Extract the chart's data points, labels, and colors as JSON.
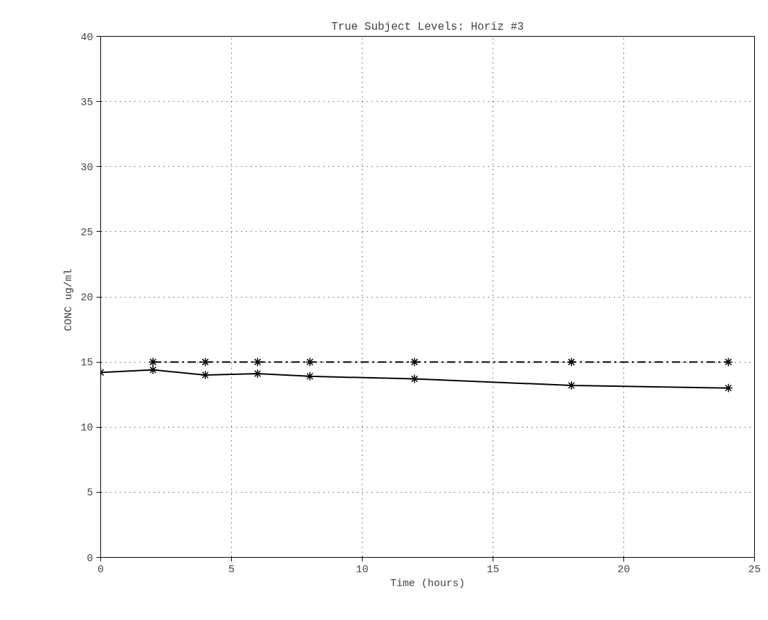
{
  "chart_data": {
    "type": "line",
    "title": "True Subject Levels: Horiz #3",
    "xlabel": "Time (hours)",
    "ylabel": "CONC  ug/ml",
    "xlim": [
      0,
      25
    ],
    "ylim": [
      0,
      40
    ],
    "xticks": [
      0,
      5,
      10,
      15,
      20,
      25
    ],
    "yticks": [
      0,
      5,
      10,
      15,
      20,
      25,
      30,
      35,
      40
    ],
    "grid": true,
    "marker": "cross",
    "series": [
      {
        "color": "#000000",
        "line_style": "solid",
        "x": [
          0,
          2,
          4,
          6,
          8,
          12,
          18,
          24
        ],
        "values": [
          14.2,
          14.4,
          14.0,
          14.1,
          13.9,
          13.7,
          13.2,
          13.0
        ]
      },
      {
        "color": "#000000",
        "line_style": "dashed",
        "x": [
          2,
          4,
          6,
          8,
          12,
          18,
          24
        ],
        "values": [
          15,
          15,
          15,
          15,
          15,
          15,
          15
        ]
      }
    ]
  }
}
